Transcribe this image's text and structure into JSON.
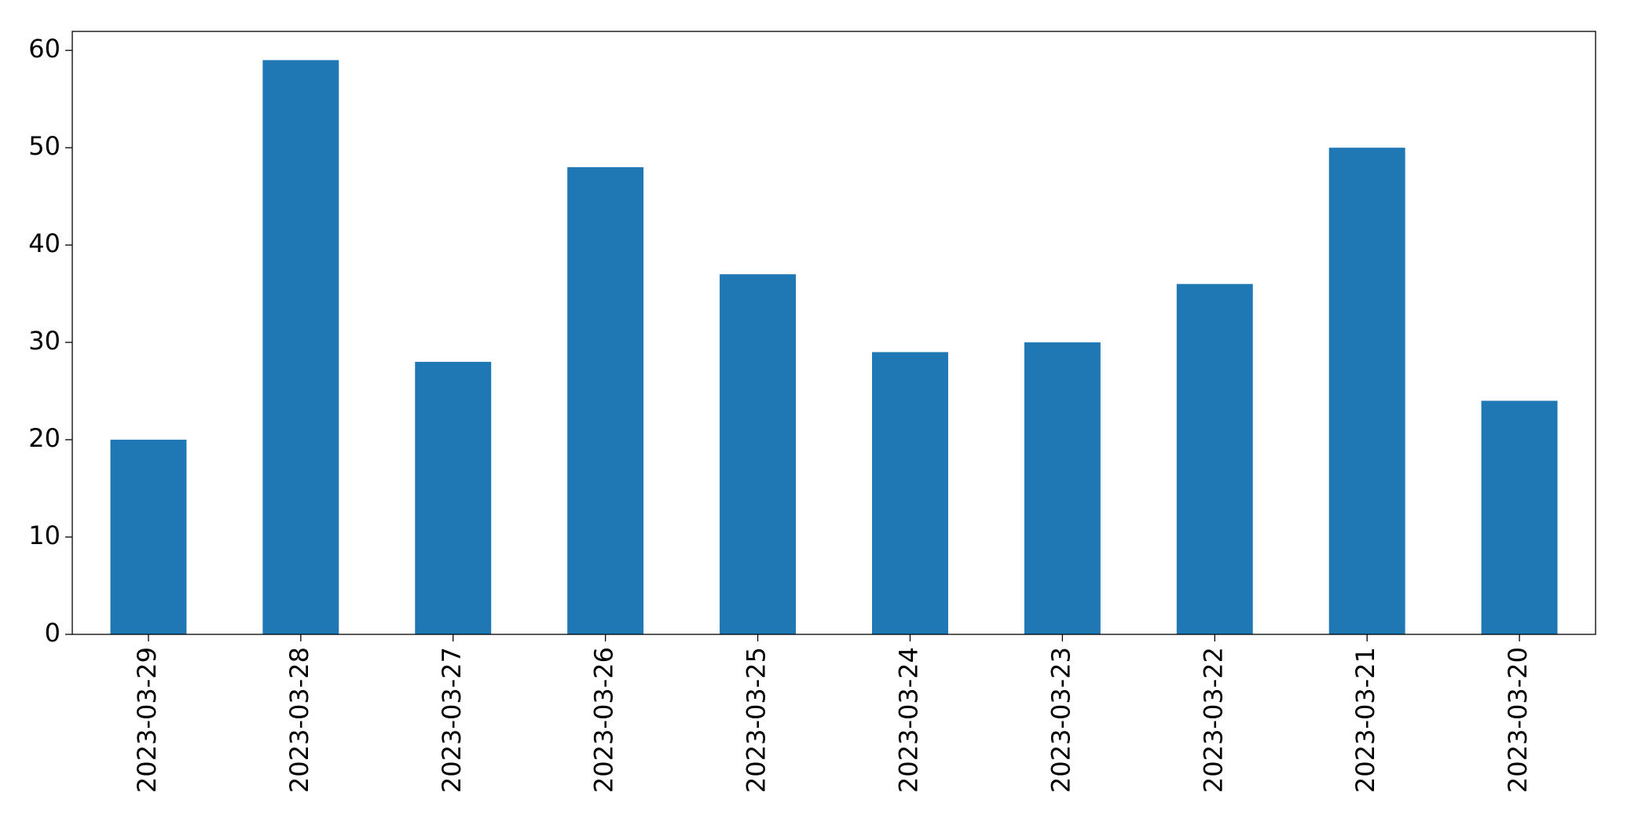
{
  "chart_data": {
    "type": "bar",
    "categories": [
      "2023-03-29",
      "2023-03-28",
      "2023-03-27",
      "2023-03-26",
      "2023-03-25",
      "2023-03-24",
      "2023-03-23",
      "2023-03-22",
      "2023-03-21",
      "2023-03-20"
    ],
    "values": [
      20,
      59,
      28,
      48,
      37,
      29,
      30,
      36,
      50,
      24
    ],
    "color": "#1f77b4",
    "ylim": [
      0,
      61.95
    ],
    "yticks": [
      0,
      10,
      20,
      30,
      40,
      50,
      60
    ],
    "grid": false
  }
}
